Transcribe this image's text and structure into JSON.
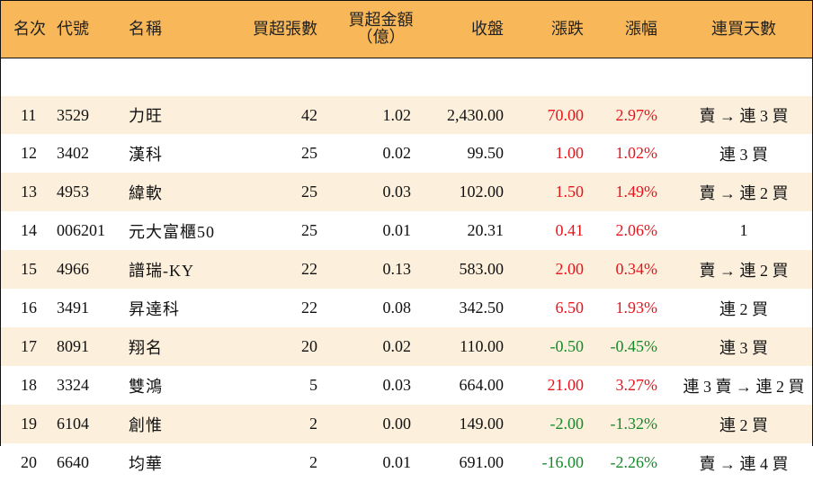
{
  "colors": {
    "header_bg": "#f8b85a",
    "odd_row_bg": "#fcefdc",
    "even_row_bg": "#ffffff",
    "up": "#e8141c",
    "down": "#168a2a",
    "neutral": "#111111"
  },
  "headers": {
    "rank": "名次",
    "code": "代號",
    "name": "名稱",
    "net_buy_lots": "買超張數",
    "net_buy_amount_line1": "買超金額",
    "net_buy_amount_line2": "（億）",
    "close": "收盤",
    "change": "漲跌",
    "change_pct": "漲幅",
    "streak": "連買天數"
  },
  "rows": [
    {
      "rank": "11",
      "code": "3529",
      "name": "力旺",
      "lots": "42",
      "amount": "1.02",
      "close": "2,430.00",
      "change": "70.00",
      "pct": "2.97%",
      "dir": "up",
      "streak": "賣 → 連 3 買"
    },
    {
      "rank": "12",
      "code": "3402",
      "name": "漢科",
      "lots": "25",
      "amount": "0.02",
      "close": "99.50",
      "change": "1.00",
      "pct": "1.02%",
      "dir": "up",
      "streak": "連 3 買"
    },
    {
      "rank": "13",
      "code": "4953",
      "name": "緯軟",
      "lots": "25",
      "amount": "0.03",
      "close": "102.00",
      "change": "1.50",
      "pct": "1.49%",
      "dir": "up",
      "streak": "賣 → 連 2 買"
    },
    {
      "rank": "14",
      "code": "006201",
      "name": "元大富櫃50",
      "lots": "25",
      "amount": "0.01",
      "close": "20.31",
      "change": "0.41",
      "pct": "2.06%",
      "dir": "up",
      "streak": "1"
    },
    {
      "rank": "15",
      "code": "4966",
      "name": "譜瑞-KY",
      "lots": "22",
      "amount": "0.13",
      "close": "583.00",
      "change": "2.00",
      "pct": "0.34%",
      "dir": "up",
      "streak": "賣 → 連 2 買"
    },
    {
      "rank": "16",
      "code": "3491",
      "name": "昇達科",
      "lots": "22",
      "amount": "0.08",
      "close": "342.50",
      "change": "6.50",
      "pct": "1.93%",
      "dir": "up",
      "streak": "連 2 買"
    },
    {
      "rank": "17",
      "code": "8091",
      "name": "翔名",
      "lots": "20",
      "amount": "0.02",
      "close": "110.00",
      "change": "-0.50",
      "pct": "-0.45%",
      "dir": "down",
      "streak": "連 3 買"
    },
    {
      "rank": "18",
      "code": "3324",
      "name": "雙鴻",
      "lots": "5",
      "amount": "0.03",
      "close": "664.00",
      "change": "21.00",
      "pct": "3.27%",
      "dir": "up",
      "streak": "連 3 賣 → 連 2 買"
    },
    {
      "rank": "19",
      "code": "6104",
      "name": "創惟",
      "lots": "2",
      "amount": "0.00",
      "close": "149.00",
      "change": "-2.00",
      "pct": "-1.32%",
      "dir": "down",
      "streak": "連 2 買"
    },
    {
      "rank": "20",
      "code": "6640",
      "name": "均華",
      "lots": "2",
      "amount": "0.01",
      "close": "691.00",
      "change": "-16.00",
      "pct": "-2.26%",
      "dir": "down",
      "streak": "賣 → 連 4 買"
    }
  ]
}
